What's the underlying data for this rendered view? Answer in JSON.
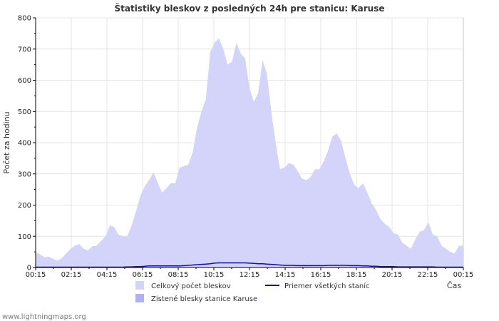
{
  "chart_data": {
    "type": "area",
    "title": "Štatistiky bleskov z posledných 24h pre stanicu: Karuse",
    "xlabel": "Čas",
    "ylabel": "Počet za hodinu",
    "ylim": [
      0,
      800
    ],
    "yticks": [
      0,
      100,
      200,
      300,
      400,
      500,
      600,
      700,
      800
    ],
    "xtick_labels": [
      "00:15",
      "02:15",
      "04:15",
      "06:15",
      "08:15",
      "10:15",
      "12:15",
      "14:15",
      "16:15",
      "18:15",
      "20:15",
      "22:15",
      "00:15"
    ],
    "x_step_minutes": 15,
    "grid": true,
    "colors": {
      "total_fill": "#d4d4fb",
      "station_fill": "#b0b0f5",
      "average_line": "#1010b0",
      "grid": "#e4e4e4",
      "axis": "#000000",
      "frame": "#c8c8c8"
    },
    "legend": [
      {
        "name": "Celkový počet bleskov",
        "type": "area",
        "color": "#d4d4fb"
      },
      {
        "name": "Zistené blesky stanice Karuse",
        "type": "area",
        "color": "#b0b0f5"
      },
      {
        "name": "Priemer všetkých staníc",
        "type": "line",
        "color": "#1010b0"
      }
    ],
    "series": [
      {
        "name": "Celkový počet bleskov",
        "values": [
          50,
          42,
          33,
          35,
          28,
          22,
          30,
          45,
          60,
          70,
          75,
          60,
          55,
          68,
          70,
          85,
          100,
          135,
          130,
          105,
          100,
          100,
          135,
          180,
          230,
          260,
          280,
          305,
          270,
          240,
          255,
          270,
          270,
          320,
          325,
          330,
          370,
          450,
          500,
          540,
          690,
          720,
          735,
          700,
          650,
          660,
          720,
          685,
          670,
          575,
          530,
          560,
          665,
          620,
          500,
          400,
          315,
          320,
          335,
          330,
          310,
          285,
          280,
          290,
          315,
          315,
          340,
          375,
          420,
          430,
          405,
          350,
          300,
          265,
          255,
          270,
          240,
          205,
          185,
          155,
          140,
          130,
          110,
          105,
          80,
          70,
          60,
          90,
          115,
          120,
          145,
          105,
          100,
          70,
          60,
          50,
          45,
          70,
          70
        ],
        "color": "#d4d4fb"
      },
      {
        "name": "Zistené blesky stanice Karuse",
        "values": [
          0,
          0,
          0,
          0,
          0,
          0,
          0,
          0,
          0,
          0,
          0,
          0,
          0,
          0,
          0,
          0,
          0,
          0,
          0,
          0,
          0,
          0,
          0,
          0,
          0,
          0,
          0,
          0,
          0,
          0,
          0,
          0,
          0,
          0,
          0,
          0,
          0,
          0,
          0,
          0,
          0,
          0,
          0,
          0,
          0,
          0,
          0,
          0,
          0,
          0,
          0,
          0,
          0,
          0,
          0,
          0,
          0,
          0,
          0,
          0,
          0,
          0,
          0,
          0,
          0,
          0,
          0,
          0,
          0,
          0,
          0,
          0,
          0,
          0,
          0,
          0,
          0,
          0,
          0,
          0,
          0,
          0,
          0,
          0,
          0,
          0,
          0,
          0,
          0,
          0,
          0,
          0,
          0,
          0,
          0,
          0,
          0,
          0,
          0
        ],
        "color": "#b0b0f5"
      },
      {
        "name": "Priemer všetkých staníc",
        "values": [
          1,
          1,
          1,
          1,
          1,
          1,
          1,
          1,
          1,
          1,
          1,
          1,
          1,
          1,
          1,
          1,
          1,
          1,
          1,
          1,
          1,
          2,
          2,
          3,
          3,
          4,
          5,
          5,
          5,
          5,
          5,
          5,
          5,
          5,
          6,
          7,
          8,
          9,
          10,
          11,
          12,
          14,
          15,
          15,
          15,
          15,
          15,
          15,
          15,
          14,
          13,
          12,
          12,
          11,
          10,
          9,
          8,
          7,
          7,
          7,
          6,
          6,
          6,
          6,
          6,
          6,
          6,
          7,
          7,
          7,
          7,
          7,
          6,
          6,
          6,
          5,
          5,
          4,
          4,
          3,
          3,
          3,
          3,
          2,
          2,
          2,
          2,
          2,
          2,
          2,
          2,
          2,
          1,
          1,
          1,
          1,
          1,
          1,
          1
        ],
        "color": "#1010b0"
      }
    ]
  },
  "footer": {
    "site": "www.lightningmaps.org"
  }
}
